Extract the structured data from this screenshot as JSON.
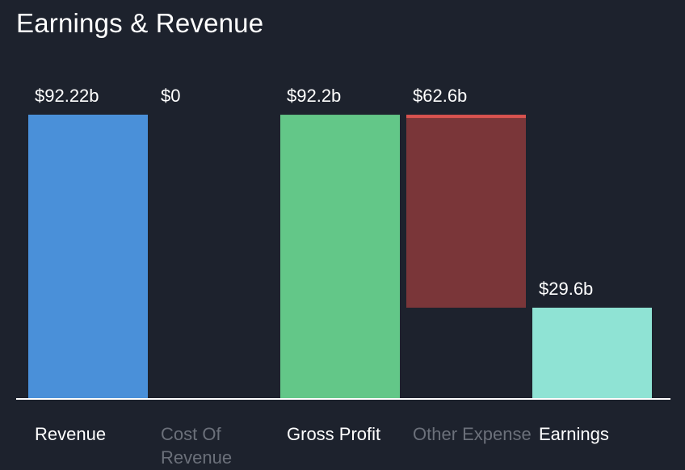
{
  "chart_data": {
    "type": "bar",
    "title": "Earnings & Revenue",
    "xlabel": "",
    "ylabel": "",
    "ylim": [
      0,
      92.22
    ],
    "grid": false,
    "legend": "none",
    "categories": [
      "Revenue",
      "Cost Of Revenue",
      "Gross Profit",
      "Other Expense",
      "Earnings"
    ],
    "bars": [
      {
        "category": "Revenue",
        "label": "$92.22b",
        "start": 0,
        "end": 92.22,
        "color": "#4a90d9",
        "muted": false
      },
      {
        "category": "Cost Of Revenue",
        "label": "$0",
        "start": 92.22,
        "end": 92.22,
        "color": "#d9534f",
        "muted": true
      },
      {
        "category": "Gross Profit",
        "label": "$92.2b",
        "start": 0,
        "end": 92.2,
        "color": "#63c788",
        "muted": false
      },
      {
        "category": "Other Expense",
        "label": "$62.6b",
        "start": 29.6,
        "end": 92.2,
        "color": "#7a3639",
        "cap_color": "#d9534f",
        "muted": true
      },
      {
        "category": "Earnings",
        "label": "$29.6b",
        "start": 0,
        "end": 29.6,
        "color": "#8fe3d4",
        "muted": false
      }
    ],
    "colors": {
      "background": "#1d222d",
      "axis": "#ffffff",
      "label_active": "#ffffff",
      "label_muted": "#6b707a"
    }
  }
}
